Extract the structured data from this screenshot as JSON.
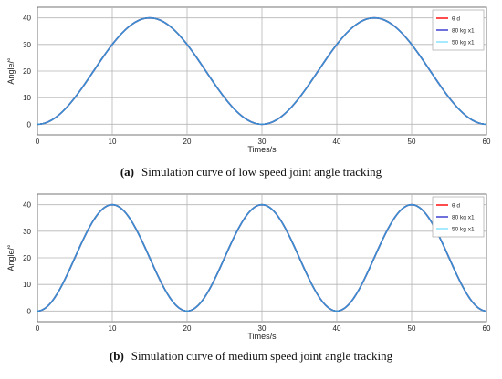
{
  "chart_data": [
    {
      "type": "line",
      "panel_label": "(a)",
      "caption": "Simulation curve of low speed joint angle tracking",
      "xlabel": "Times/s",
      "ylabel": "Angle/°",
      "xlim": [
        0,
        60
      ],
      "ylim": [
        -4,
        44
      ],
      "xticks": [
        0,
        10,
        20,
        30,
        40,
        50,
        60
      ],
      "yticks": [
        0,
        10,
        20,
        30,
        40
      ],
      "grid": true,
      "legend_position": "top-right",
      "x": [
        0,
        5,
        10,
        15,
        20,
        25,
        30,
        35,
        40,
        45,
        50,
        55,
        60
      ],
      "series": [
        {
          "name": "θ d",
          "color": "#ff0000",
          "values": [
            0,
            10,
            30,
            40,
            30,
            10,
            0,
            10,
            30,
            40,
            30,
            10,
            0
          ]
        },
        {
          "name": "80 kg x1",
          "color": "#3333cc",
          "values": [
            0,
            10,
            30,
            40,
            30,
            10,
            0,
            10,
            30,
            40,
            30,
            10,
            0
          ]
        },
        {
          "name": "50 kg x1",
          "color": "#7fe0ff",
          "values": [
            0,
            10,
            30,
            40,
            30,
            10,
            0,
            10,
            30,
            40,
            30,
            10,
            0
          ]
        }
      ],
      "visible_series_color": "#3a8fd0"
    },
    {
      "type": "line",
      "panel_label": "(b)",
      "caption": "Simulation curve of medium speed joint angle tracking",
      "xlabel": "Times/s",
      "ylabel": "Angle/°",
      "xlim": [
        0,
        60
      ],
      "ylim": [
        -4,
        44
      ],
      "xticks": [
        0,
        10,
        20,
        30,
        40,
        50,
        60
      ],
      "yticks": [
        0,
        10,
        20,
        30,
        40
      ],
      "grid": true,
      "legend_position": "top-right",
      "x": [
        0,
        5,
        10,
        15,
        20,
        25,
        30,
        35,
        40,
        45,
        50,
        55,
        60
      ],
      "series": [
        {
          "name": "θ d",
          "color": "#ff0000",
          "values": [
            0,
            20,
            40,
            20,
            0,
            20,
            40,
            20,
            0,
            20,
            40,
            20,
            0
          ]
        },
        {
          "name": "80 kg x1",
          "color": "#3333cc",
          "values": [
            0,
            20,
            40,
            20,
            0,
            20,
            40,
            20,
            0,
            20,
            40,
            20,
            0
          ]
        },
        {
          "name": "50 kg x1",
          "color": "#7fe0ff",
          "values": [
            0,
            20,
            40,
            20,
            0,
            20,
            40,
            20,
            0,
            20,
            40,
            20,
            0
          ]
        }
      ],
      "visible_series_color": "#3a8fd0"
    }
  ]
}
